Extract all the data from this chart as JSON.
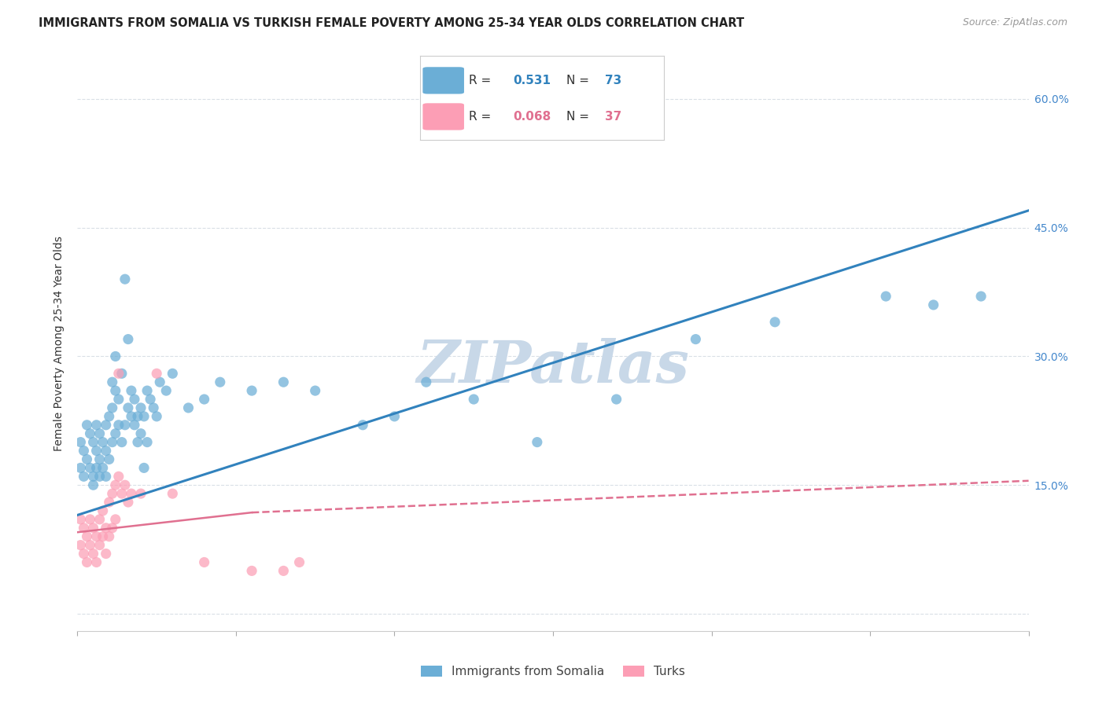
{
  "title": "IMMIGRANTS FROM SOMALIA VS TURKISH FEMALE POVERTY AMONG 25-34 YEAR OLDS CORRELATION CHART",
  "source": "Source: ZipAtlas.com",
  "ylabel": "Female Poverty Among 25-34 Year Olds",
  "y_ticks": [
    0.0,
    0.15,
    0.3,
    0.45,
    0.6
  ],
  "y_tick_labels": [
    "",
    "15.0%",
    "30.0%",
    "45.0%",
    "60.0%"
  ],
  "x_lim": [
    0.0,
    0.3
  ],
  "y_lim": [
    -0.02,
    0.65
  ],
  "somalia_R": 0.531,
  "somalia_N": 73,
  "turks_R": 0.068,
  "turks_N": 37,
  "somalia_color": "#6baed6",
  "turks_color": "#fc9eb5",
  "somalia_line_color": "#3182bd",
  "turks_line_color": "#e07090",
  "watermark": "ZIPatlas",
  "watermark_color": "#c8d8e8",
  "background_color": "#ffffff",
  "grid_color": "#d0d8e0",
  "somalia_line": [
    0.0,
    0.115,
    0.3,
    0.47
  ],
  "turks_line_solid": [
    0.0,
    0.095,
    0.055,
    0.118
  ],
  "turks_line_dashed": [
    0.055,
    0.118,
    0.3,
    0.155
  ],
  "somalia_points": [
    [
      0.001,
      0.2
    ],
    [
      0.001,
      0.17
    ],
    [
      0.002,
      0.19
    ],
    [
      0.002,
      0.16
    ],
    [
      0.003,
      0.22
    ],
    [
      0.003,
      0.18
    ],
    [
      0.004,
      0.21
    ],
    [
      0.004,
      0.17
    ],
    [
      0.005,
      0.2
    ],
    [
      0.005,
      0.16
    ],
    [
      0.005,
      0.15
    ],
    [
      0.006,
      0.22
    ],
    [
      0.006,
      0.17
    ],
    [
      0.006,
      0.19
    ],
    [
      0.007,
      0.21
    ],
    [
      0.007,
      0.18
    ],
    [
      0.007,
      0.16
    ],
    [
      0.008,
      0.2
    ],
    [
      0.008,
      0.17
    ],
    [
      0.009,
      0.22
    ],
    [
      0.009,
      0.19
    ],
    [
      0.009,
      0.16
    ],
    [
      0.01,
      0.23
    ],
    [
      0.01,
      0.18
    ],
    [
      0.011,
      0.27
    ],
    [
      0.011,
      0.24
    ],
    [
      0.011,
      0.2
    ],
    [
      0.012,
      0.3
    ],
    [
      0.012,
      0.26
    ],
    [
      0.012,
      0.21
    ],
    [
      0.013,
      0.25
    ],
    [
      0.013,
      0.22
    ],
    [
      0.014,
      0.28
    ],
    [
      0.014,
      0.2
    ],
    [
      0.015,
      0.39
    ],
    [
      0.015,
      0.22
    ],
    [
      0.016,
      0.32
    ],
    [
      0.016,
      0.24
    ],
    [
      0.017,
      0.26
    ],
    [
      0.017,
      0.23
    ],
    [
      0.018,
      0.25
    ],
    [
      0.018,
      0.22
    ],
    [
      0.019,
      0.23
    ],
    [
      0.019,
      0.2
    ],
    [
      0.02,
      0.24
    ],
    [
      0.02,
      0.21
    ],
    [
      0.021,
      0.23
    ],
    [
      0.021,
      0.17
    ],
    [
      0.022,
      0.26
    ],
    [
      0.022,
      0.2
    ],
    [
      0.023,
      0.25
    ],
    [
      0.024,
      0.24
    ],
    [
      0.025,
      0.23
    ],
    [
      0.026,
      0.27
    ],
    [
      0.028,
      0.26
    ],
    [
      0.03,
      0.28
    ],
    [
      0.035,
      0.24
    ],
    [
      0.04,
      0.25
    ],
    [
      0.045,
      0.27
    ],
    [
      0.055,
      0.26
    ],
    [
      0.065,
      0.27
    ],
    [
      0.075,
      0.26
    ],
    [
      0.09,
      0.22
    ],
    [
      0.1,
      0.23
    ],
    [
      0.11,
      0.27
    ],
    [
      0.125,
      0.25
    ],
    [
      0.145,
      0.2
    ],
    [
      0.17,
      0.25
    ],
    [
      0.195,
      0.32
    ],
    [
      0.22,
      0.34
    ],
    [
      0.255,
      0.37
    ],
    [
      0.27,
      0.36
    ],
    [
      0.285,
      0.37
    ]
  ],
  "turks_points": [
    [
      0.001,
      0.11
    ],
    [
      0.001,
      0.08
    ],
    [
      0.002,
      0.1
    ],
    [
      0.002,
      0.07
    ],
    [
      0.003,
      0.09
    ],
    [
      0.003,
      0.06
    ],
    [
      0.004,
      0.11
    ],
    [
      0.004,
      0.08
    ],
    [
      0.005,
      0.1
    ],
    [
      0.005,
      0.07
    ],
    [
      0.006,
      0.09
    ],
    [
      0.006,
      0.06
    ],
    [
      0.007,
      0.11
    ],
    [
      0.007,
      0.08
    ],
    [
      0.008,
      0.12
    ],
    [
      0.008,
      0.09
    ],
    [
      0.009,
      0.1
    ],
    [
      0.009,
      0.07
    ],
    [
      0.01,
      0.13
    ],
    [
      0.01,
      0.09
    ],
    [
      0.011,
      0.14
    ],
    [
      0.011,
      0.1
    ],
    [
      0.012,
      0.15
    ],
    [
      0.012,
      0.11
    ],
    [
      0.013,
      0.16
    ],
    [
      0.013,
      0.28
    ],
    [
      0.014,
      0.14
    ],
    [
      0.015,
      0.15
    ],
    [
      0.016,
      0.13
    ],
    [
      0.017,
      0.14
    ],
    [
      0.02,
      0.14
    ],
    [
      0.025,
      0.28
    ],
    [
      0.03,
      0.14
    ],
    [
      0.04,
      0.06
    ],
    [
      0.055,
      0.05
    ],
    [
      0.065,
      0.05
    ],
    [
      0.07,
      0.06
    ]
  ]
}
